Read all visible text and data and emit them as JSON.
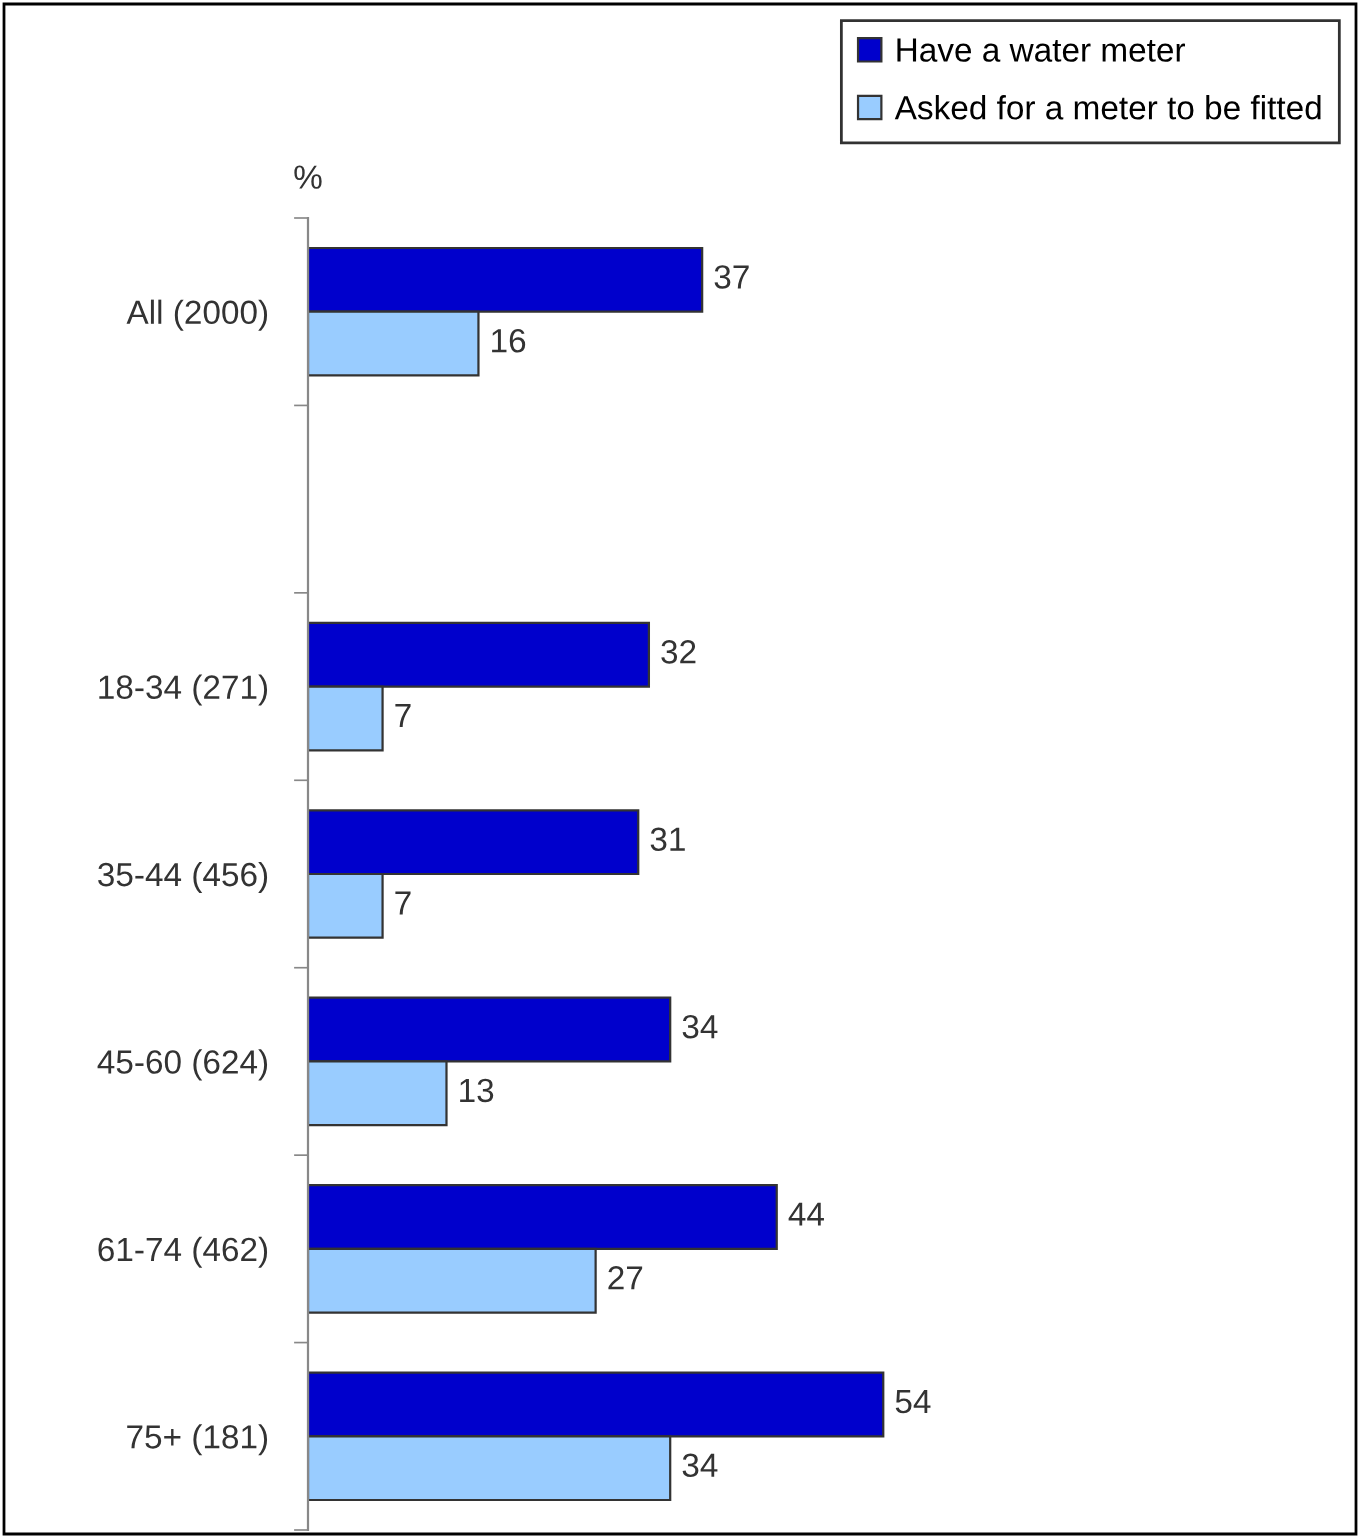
{
  "chart_data": {
    "type": "bar",
    "orientation": "horizontal",
    "categories": [
      "All (2000)",
      null,
      "18-34 (271)",
      "35-44 (456)",
      "45-60 (624)",
      "61-74 (462)",
      "75+ (181)"
    ],
    "series": [
      {
        "name": "Have a water meter",
        "color": "#0000cc",
        "values": [
          37,
          null,
          32,
          31,
          34,
          44,
          54
        ]
      },
      {
        "name": "Asked for a meter to be fitted",
        "color": "#99ccff",
        "values": [
          16,
          null,
          7,
          7,
          13,
          27,
          34
        ]
      }
    ],
    "xlim": [
      0,
      98
    ],
    "tick_labels": "y",
    "data_labels": true,
    "legend": "top right",
    "grid": false,
    "annotations": [
      "%"
    ]
  }
}
